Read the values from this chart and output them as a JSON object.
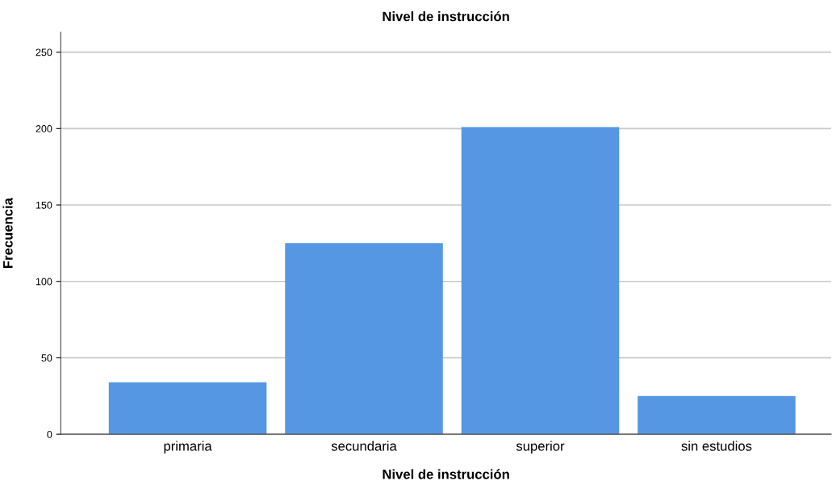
{
  "chart_data": {
    "type": "bar",
    "title": "Nivel de instrucción",
    "xlabel": "Nivel de instrucción",
    "ylabel": "Frecuencia",
    "categories": [
      "primaria",
      "secundaria",
      "superior",
      "sin estudios"
    ],
    "values": [
      34,
      125,
      201,
      25
    ],
    "color": "#5597e3",
    "ylim": [
      0,
      263
    ],
    "yticks": [
      0,
      50,
      100,
      150,
      200,
      250
    ],
    "grid": "y"
  }
}
